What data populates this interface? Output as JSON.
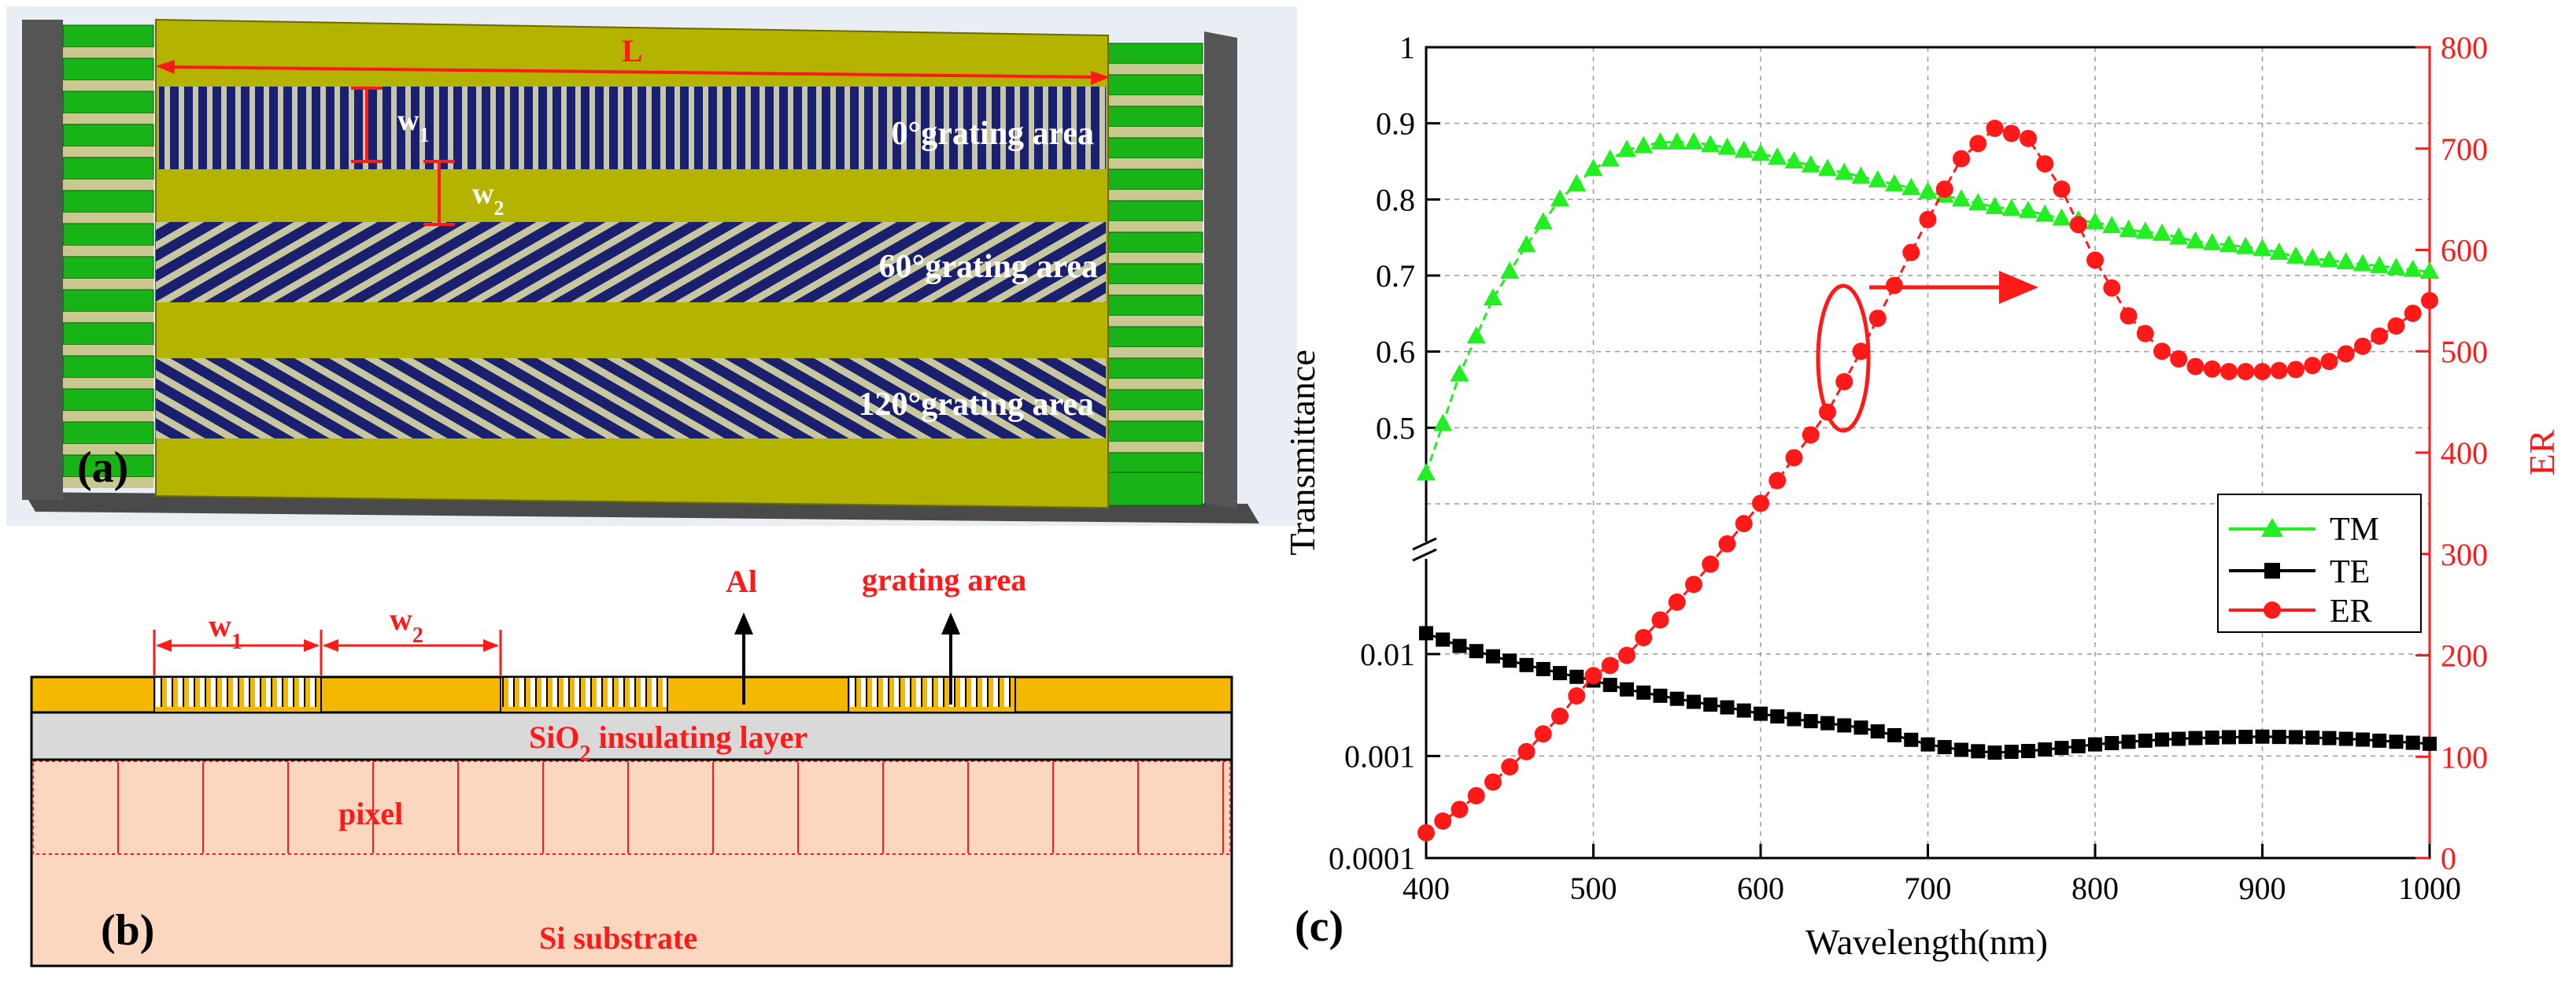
{
  "panel_a": {
    "label": "(a)",
    "length_label": "L",
    "w1_label": "w",
    "w1_sub": "1",
    "w2_label": "w",
    "w2_sub": "2",
    "grating_0_label": "0°grating area",
    "grating_60_label": "60°grating area",
    "grating_120_label": "120°grating area"
  },
  "panel_b": {
    "label": "(b)",
    "w1_label": "w",
    "w1_sub": "1",
    "w2_label": "w",
    "w2_sub": "2",
    "al_label": "Al",
    "grating_label": "grating area",
    "sio2_label_pre": "SiO",
    "sio2_label_sub": "2",
    "sio2_label_post": " insulating layer",
    "pixel_label": "pixel",
    "si_label": "Si substrate"
  },
  "panel_c": {
    "label": "(c)"
  },
  "colors": {
    "tm": "#22ee22",
    "te": "#000000",
    "er": "#ff1a1a",
    "gold": "#b3b300",
    "grating": "#1a1f6e",
    "pad_green": "#17b317",
    "al": "#f5b800",
    "sio2": "#d9d9d9",
    "si": "#fbd7c0"
  },
  "chart_data": {
    "type": "line",
    "title": "",
    "xlabel": "Wavelength(nm)",
    "ylabel_left": "Transmittance",
    "ylabel_right": "ER",
    "xlim": [
      400,
      1000
    ],
    "x_ticks": [
      "400",
      "500",
      "600",
      "700",
      "800",
      "900",
      "1000"
    ],
    "y_left_upper_range": [
      0.4,
      1.0
    ],
    "y_left_upper_ticks": [
      "0.5",
      "0.6",
      "0.7",
      "0.8",
      "0.9",
      "1"
    ],
    "y_left_lower_range_log": [
      0.0001,
      0.06
    ],
    "y_left_lower_ticks": [
      "0.0001",
      "0.001",
      "0.01"
    ],
    "y_right_range": [
      0,
      800
    ],
    "y_right_ticks": [
      "0",
      "100",
      "200",
      "300",
      "400",
      "500",
      "600",
      "700",
      "800"
    ],
    "axis_break": "left axis broken between ~0.06 and 0.4",
    "legend_position": "right, lower-middle",
    "grid": true,
    "series": [
      {
        "name": "TM",
        "axis": "left-upper",
        "marker": "triangle",
        "x": [
          400,
          420,
          440,
          460,
          480,
          500,
          520,
          540,
          560,
          580,
          600,
          620,
          640,
          660,
          680,
          700,
          720,
          740,
          760,
          780,
          800,
          820,
          840,
          860,
          880,
          900,
          920,
          940,
          960,
          980,
          1000
        ],
        "values": [
          0.44,
          0.57,
          0.67,
          0.74,
          0.8,
          0.84,
          0.865,
          0.875,
          0.875,
          0.868,
          0.86,
          0.85,
          0.84,
          0.83,
          0.82,
          0.81,
          0.8,
          0.79,
          0.785,
          0.775,
          0.77,
          0.76,
          0.755,
          0.745,
          0.74,
          0.735,
          0.725,
          0.72,
          0.715,
          0.71,
          0.705
        ]
      },
      {
        "name": "TE",
        "axis": "left-lower-log",
        "marker": "square",
        "x": [
          400,
          420,
          440,
          460,
          480,
          500,
          520,
          540,
          560,
          580,
          600,
          620,
          640,
          660,
          680,
          700,
          720,
          740,
          760,
          780,
          800,
          820,
          840,
          860,
          880,
          900,
          920,
          940,
          960,
          980,
          1000
        ],
        "values": [
          0.016,
          0.012,
          0.0095,
          0.0078,
          0.0065,
          0.0055,
          0.0045,
          0.0039,
          0.0034,
          0.003,
          0.0026,
          0.0023,
          0.0021,
          0.0019,
          0.0016,
          0.0013,
          0.00115,
          0.00108,
          0.00112,
          0.0012,
          0.0013,
          0.00138,
          0.00145,
          0.0015,
          0.00153,
          0.00155,
          0.00153,
          0.0015,
          0.00145,
          0.00138,
          0.00132
        ]
      },
      {
        "name": "ER",
        "axis": "right",
        "marker": "circle",
        "x": [
          400,
          420,
          440,
          460,
          480,
          500,
          520,
          540,
          560,
          580,
          600,
          620,
          640,
          660,
          680,
          700,
          720,
          740,
          760,
          780,
          800,
          820,
          840,
          860,
          880,
          900,
          920,
          940,
          960,
          980,
          1000
        ],
        "values": [
          25,
          48,
          75,
          105,
          140,
          180,
          200,
          235,
          270,
          310,
          350,
          395,
          440,
          500,
          565,
          630,
          690,
          720,
          710,
          660,
          590,
          535,
          500,
          485,
          480,
          480,
          482,
          490,
          505,
          525,
          550
        ]
      }
    ]
  }
}
